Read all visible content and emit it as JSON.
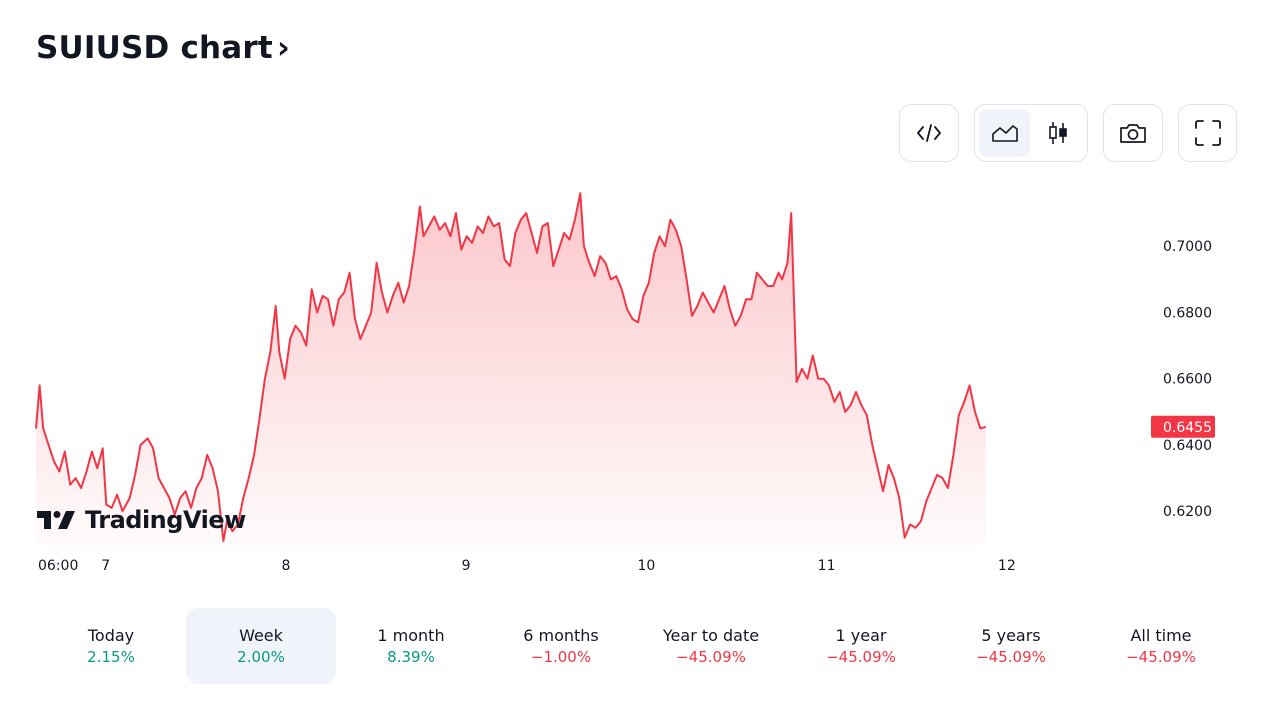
{
  "header": {
    "title": "SUIUSD chart",
    "chevron": "›"
  },
  "toolbar": {
    "embed_icon": "code-icon",
    "chart_type_area_icon": "area-chart-icon",
    "chart_type_candles_icon": "candlestick-icon",
    "snapshot_icon": "camera-icon",
    "fullscreen_icon": "fullscreen-icon",
    "active_chart_type": "area"
  },
  "watermark": {
    "text": "TradingView",
    "logo": "TV"
  },
  "current_price": "0.6455",
  "colors": {
    "line": "#f23645",
    "fill_top": "#f23645",
    "positive": "#089981",
    "negative": "#f23645",
    "active_bg": "#f0f3fa"
  },
  "chart_data": {
    "type": "area",
    "title": "SUIUSD chart",
    "x_ticks": [
      {
        "x": 0,
        "label": "06:00"
      },
      {
        "x": 0.1667,
        "label": "7"
      },
      {
        "x": 1.1667,
        "label": "8"
      },
      {
        "x": 2.1667,
        "label": "9"
      },
      {
        "x": 3.1667,
        "label": "10"
      },
      {
        "x": 4.1667,
        "label": "11"
      },
      {
        "x": 5.1667,
        "label": "12"
      }
    ],
    "y_ticks": [
      "0.7000",
      "0.6800",
      "0.6600",
      "0.6400",
      "0.6200"
    ],
    "ylim": [
      0.6095,
      0.72
    ],
    "xlim": [
      -0.22,
      5.95
    ],
    "grid": false,
    "series": [
      {
        "values": [
          [
            -0.22,
            0.645
          ],
          [
            -0.2,
            0.658
          ],
          [
            -0.18,
            0.645
          ],
          [
            -0.15,
            0.64
          ],
          [
            -0.12,
            0.635
          ],
          [
            -0.09,
            0.632
          ],
          [
            -0.06,
            0.638
          ],
          [
            -0.03,
            0.628
          ],
          [
            0.0,
            0.63
          ],
          [
            0.03,
            0.627
          ],
          [
            0.06,
            0.632
          ],
          [
            0.09,
            0.638
          ],
          [
            0.12,
            0.633
          ],
          [
            0.15,
            0.639
          ],
          [
            0.17,
            0.622
          ],
          [
            0.2,
            0.621
          ],
          [
            0.23,
            0.625
          ],
          [
            0.26,
            0.62
          ],
          [
            0.3,
            0.624
          ],
          [
            0.33,
            0.631
          ],
          [
            0.36,
            0.64
          ],
          [
            0.4,
            0.642
          ],
          [
            0.43,
            0.639
          ],
          [
            0.46,
            0.63
          ],
          [
            0.49,
            0.627
          ],
          [
            0.52,
            0.624
          ],
          [
            0.55,
            0.619
          ],
          [
            0.58,
            0.624
          ],
          [
            0.61,
            0.626
          ],
          [
            0.64,
            0.621
          ],
          [
            0.67,
            0.627
          ],
          [
            0.7,
            0.63
          ],
          [
            0.73,
            0.637
          ],
          [
            0.76,
            0.633
          ],
          [
            0.79,
            0.626
          ],
          [
            0.82,
            0.611
          ],
          [
            0.84,
            0.617
          ],
          [
            0.87,
            0.614
          ],
          [
            0.9,
            0.616
          ],
          [
            0.93,
            0.624
          ],
          [
            0.96,
            0.63
          ],
          [
            0.99,
            0.637
          ],
          [
            1.02,
            0.648
          ],
          [
            1.05,
            0.66
          ],
          [
            1.08,
            0.668
          ],
          [
            1.11,
            0.682
          ],
          [
            1.13,
            0.668
          ],
          [
            1.16,
            0.66
          ],
          [
            1.19,
            0.672
          ],
          [
            1.22,
            0.676
          ],
          [
            1.25,
            0.674
          ],
          [
            1.28,
            0.67
          ],
          [
            1.31,
            0.687
          ],
          [
            1.34,
            0.68
          ],
          [
            1.37,
            0.685
          ],
          [
            1.4,
            0.684
          ],
          [
            1.43,
            0.676
          ],
          [
            1.46,
            0.684
          ],
          [
            1.49,
            0.686
          ],
          [
            1.52,
            0.692
          ],
          [
            1.55,
            0.678
          ],
          [
            1.58,
            0.672
          ],
          [
            1.61,
            0.676
          ],
          [
            1.64,
            0.68
          ],
          [
            1.67,
            0.695
          ],
          [
            1.7,
            0.686
          ],
          [
            1.73,
            0.68
          ],
          [
            1.76,
            0.685
          ],
          [
            1.79,
            0.689
          ],
          [
            1.82,
            0.683
          ],
          [
            1.85,
            0.688
          ],
          [
            1.88,
            0.699
          ],
          [
            1.91,
            0.712
          ],
          [
            1.93,
            0.703
          ],
          [
            1.96,
            0.706
          ],
          [
            1.99,
            0.709
          ],
          [
            2.02,
            0.705
          ],
          [
            2.05,
            0.707
          ],
          [
            2.08,
            0.703
          ],
          [
            2.11,
            0.71
          ],
          [
            2.14,
            0.699
          ],
          [
            2.17,
            0.703
          ],
          [
            2.2,
            0.701
          ],
          [
            2.23,
            0.706
          ],
          [
            2.26,
            0.704
          ],
          [
            2.29,
            0.709
          ],
          [
            2.32,
            0.706
          ],
          [
            2.35,
            0.707
          ],
          [
            2.38,
            0.696
          ],
          [
            2.41,
            0.694
          ],
          [
            2.44,
            0.704
          ],
          [
            2.47,
            0.708
          ],
          [
            2.5,
            0.71
          ],
          [
            2.53,
            0.704
          ],
          [
            2.56,
            0.698
          ],
          [
            2.59,
            0.706
          ],
          [
            2.62,
            0.707
          ],
          [
            2.65,
            0.694
          ],
          [
            2.68,
            0.699
          ],
          [
            2.71,
            0.704
          ],
          [
            2.74,
            0.702
          ],
          [
            2.77,
            0.708
          ],
          [
            2.8,
            0.716
          ],
          [
            2.82,
            0.7
          ],
          [
            2.85,
            0.695
          ],
          [
            2.88,
            0.691
          ],
          [
            2.91,
            0.697
          ],
          [
            2.94,
            0.695
          ],
          [
            2.97,
            0.69
          ],
          [
            3.0,
            0.691
          ],
          [
            3.03,
            0.687
          ],
          [
            3.06,
            0.681
          ],
          [
            3.09,
            0.678
          ],
          [
            3.12,
            0.677
          ],
          [
            3.15,
            0.685
          ],
          [
            3.18,
            0.689
          ],
          [
            3.21,
            0.698
          ],
          [
            3.24,
            0.703
          ],
          [
            3.27,
            0.7
          ],
          [
            3.3,
            0.708
          ],
          [
            3.33,
            0.705
          ],
          [
            3.36,
            0.7
          ],
          [
            3.39,
            0.69
          ],
          [
            3.42,
            0.679
          ],
          [
            3.45,
            0.682
          ],
          [
            3.48,
            0.686
          ],
          [
            3.51,
            0.683
          ],
          [
            3.54,
            0.68
          ],
          [
            3.57,
            0.684
          ],
          [
            3.6,
            0.688
          ],
          [
            3.63,
            0.681
          ],
          [
            3.66,
            0.676
          ],
          [
            3.69,
            0.679
          ],
          [
            3.72,
            0.684
          ],
          [
            3.75,
            0.684
          ],
          [
            3.78,
            0.692
          ],
          [
            3.81,
            0.69
          ],
          [
            3.84,
            0.688
          ],
          [
            3.87,
            0.688
          ],
          [
            3.9,
            0.692
          ],
          [
            3.92,
            0.69
          ],
          [
            3.95,
            0.695
          ],
          [
            3.97,
            0.71
          ],
          [
            4.0,
            0.659
          ],
          [
            4.03,
            0.663
          ],
          [
            4.06,
            0.66
          ],
          [
            4.09,
            0.667
          ],
          [
            4.12,
            0.66
          ],
          [
            4.15,
            0.66
          ],
          [
            4.18,
            0.658
          ],
          [
            4.21,
            0.653
          ],
          [
            4.24,
            0.656
          ],
          [
            4.27,
            0.65
          ],
          [
            4.3,
            0.652
          ],
          [
            4.33,
            0.656
          ],
          [
            4.36,
            0.652
          ],
          [
            4.39,
            0.649
          ],
          [
            4.42,
            0.64
          ],
          [
            4.45,
            0.633
          ],
          [
            4.48,
            0.626
          ],
          [
            4.51,
            0.634
          ],
          [
            4.54,
            0.63
          ],
          [
            4.57,
            0.624
          ],
          [
            4.6,
            0.612
          ],
          [
            4.63,
            0.616
          ],
          [
            4.66,
            0.615
          ],
          [
            4.69,
            0.617
          ],
          [
            4.72,
            0.623
          ],
          [
            4.75,
            0.627
          ],
          [
            4.78,
            0.631
          ],
          [
            4.81,
            0.63
          ],
          [
            4.84,
            0.627
          ],
          [
            4.87,
            0.637
          ],
          [
            4.9,
            0.649
          ],
          [
            4.93,
            0.653
          ],
          [
            4.96,
            0.658
          ],
          [
            4.99,
            0.65
          ],
          [
            5.02,
            0.645
          ],
          [
            5.05,
            0.6455
          ]
        ]
      }
    ]
  },
  "periods": [
    {
      "label": "Today",
      "value": "2.15%",
      "sign": "positive"
    },
    {
      "label": "Week",
      "value": "2.00%",
      "sign": "positive",
      "active": true
    },
    {
      "label": "1 month",
      "value": "8.39%",
      "sign": "positive"
    },
    {
      "label": "6 months",
      "value": "−1.00%",
      "sign": "negative"
    },
    {
      "label": "Year to date",
      "value": "−45.09%",
      "sign": "negative"
    },
    {
      "label": "1 year",
      "value": "−45.09%",
      "sign": "negative"
    },
    {
      "label": "5 years",
      "value": "−45.09%",
      "sign": "negative"
    },
    {
      "label": "All time",
      "value": "−45.09%",
      "sign": "negative"
    }
  ]
}
